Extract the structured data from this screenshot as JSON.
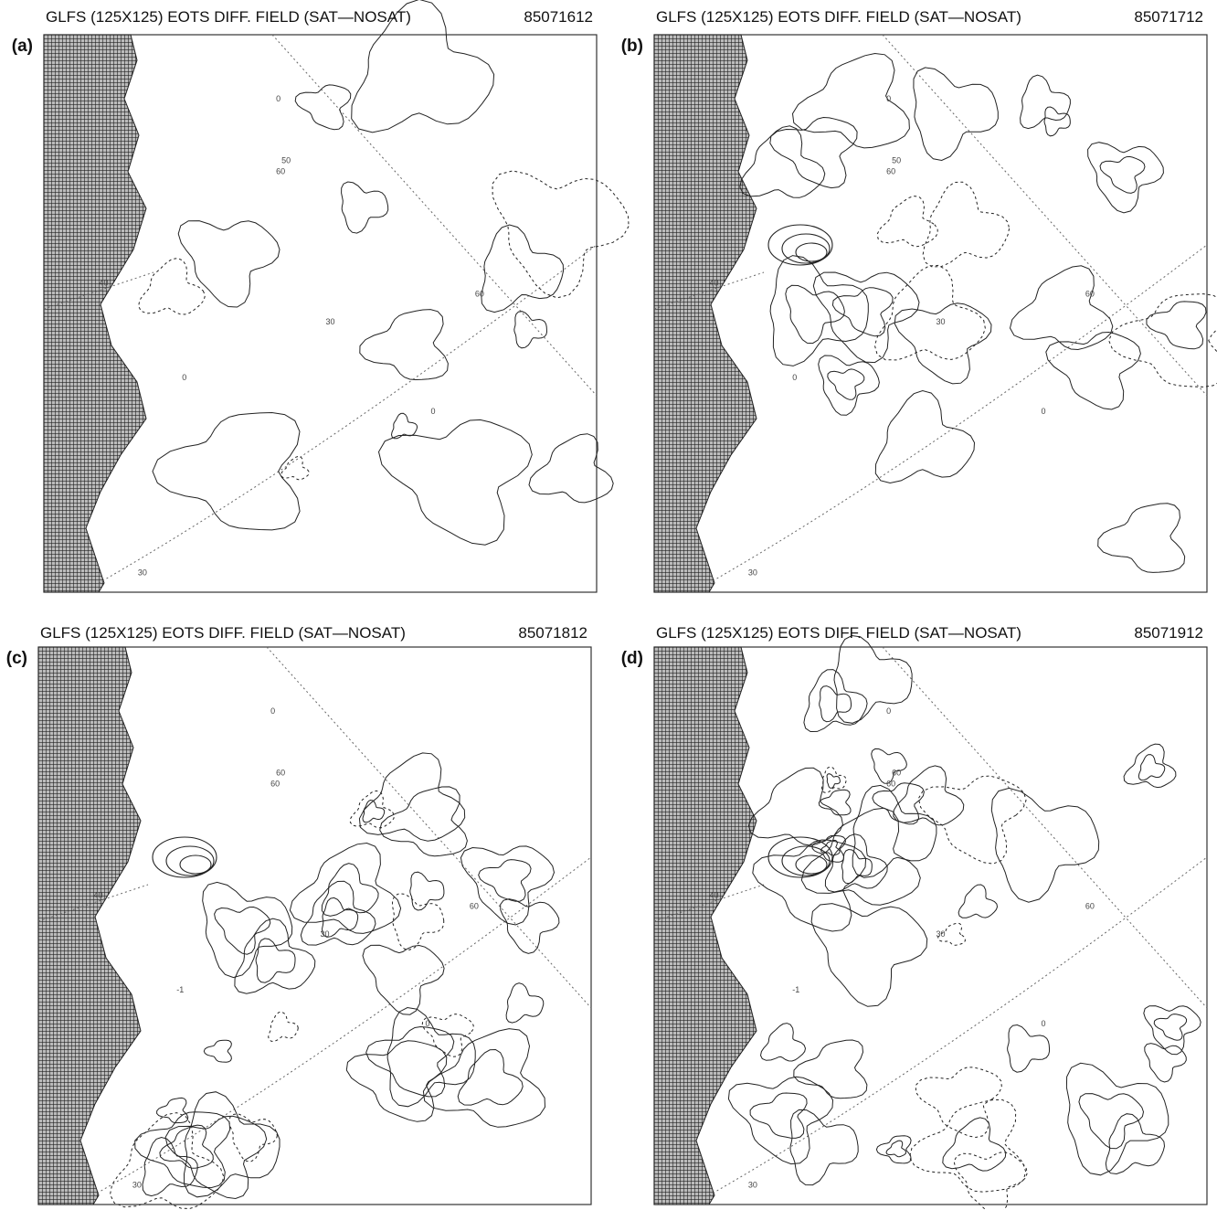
{
  "panels": [
    {
      "label": "(a)",
      "title": "GLFS (125X125) EOTS DIFF. FIELD (SAT—NOSAT)",
      "date": "85071612",
      "annotations": [
        "60",
        "60",
        "30",
        "30",
        "40",
        "50",
        "0",
        "0",
        "0"
      ]
    },
    {
      "label": "(b)",
      "title": "GLFS (125X125) EOTS DIFF. FIELD (SAT—NOSAT)",
      "date": "85071712",
      "annotations": [
        "60",
        "60",
        "30",
        "30",
        "40",
        "50",
        "0",
        "0",
        "0"
      ]
    },
    {
      "label": "(c)",
      "title": "GLFS (125X125) EOTS DIFF. FIELD (SAT—NOSAT)",
      "date": "85071812",
      "annotations": [
        "60",
        "60",
        "30",
        "30",
        "40",
        "60",
        "0",
        "-1",
        "0"
      ]
    },
    {
      "label": "(d)",
      "title": "GLFS (125X125) EOTS DIFF. FIELD (SAT—NOSAT)",
      "date": "85071912",
      "annotations": [
        "60",
        "60",
        "30",
        "30",
        "40",
        "60",
        "0",
        "-1",
        "0"
      ]
    }
  ]
}
